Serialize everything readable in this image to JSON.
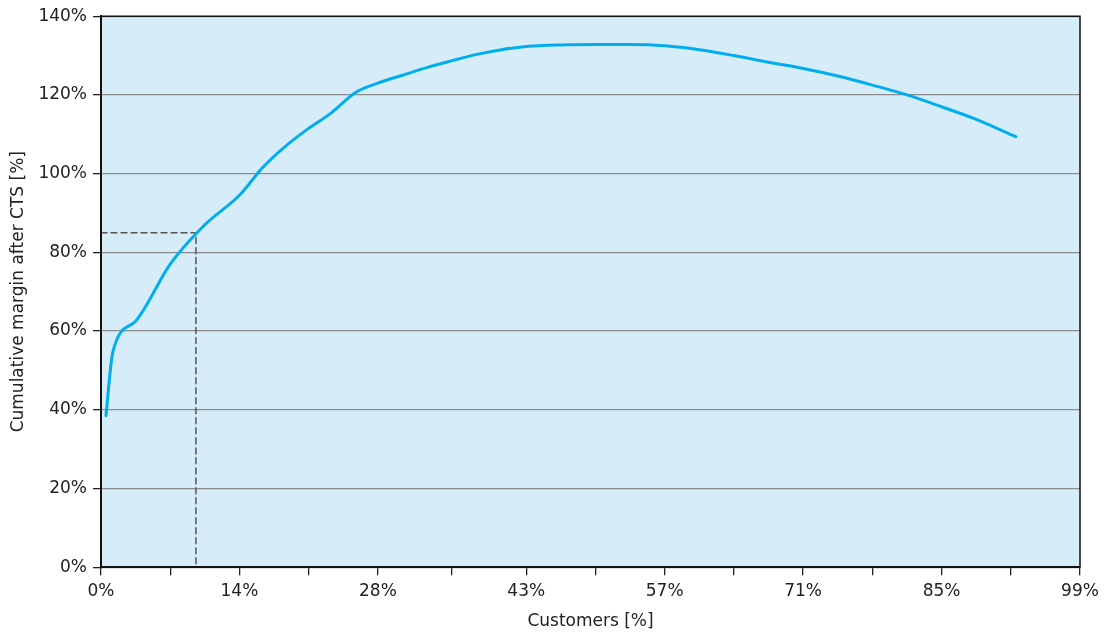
{
  "chart_data": {
    "type": "line",
    "xlabel": "Customers [%]",
    "ylabel": "Cumulative margin after CTS [%]",
    "xlim": [
      0,
      99
    ],
    "ylim": [
      0,
      140
    ],
    "xticks": [
      {
        "value": 0,
        "label": "0%"
      },
      {
        "value": 7,
        "label": null
      },
      {
        "value": 14,
        "label": "14%"
      },
      {
        "value": 21,
        "label": null
      },
      {
        "value": 28,
        "label": "28%"
      },
      {
        "value": 35.5,
        "label": null
      },
      {
        "value": 43,
        "label": "43%"
      },
      {
        "value": 50,
        "label": null
      },
      {
        "value": 57,
        "label": "57%"
      },
      {
        "value": 64,
        "label": null
      },
      {
        "value": 71,
        "label": "71%"
      },
      {
        "value": 78,
        "label": null
      },
      {
        "value": 85,
        "label": "85%"
      },
      {
        "value": 92,
        "label": null
      },
      {
        "value": 99,
        "label": "99%"
      }
    ],
    "yticks": [
      {
        "value": 0,
        "label": "0%"
      },
      {
        "value": 20,
        "label": "20%"
      },
      {
        "value": 40,
        "label": "40%"
      },
      {
        "value": 60,
        "label": "60%"
      },
      {
        "value": 80,
        "label": "80%"
      },
      {
        "value": 100,
        "label": "100%"
      },
      {
        "value": 120,
        "label": "120%"
      },
      {
        "value": 140,
        "label": "140%"
      }
    ],
    "grid": "y",
    "legend": false,
    "marker": "none",
    "series": [
      {
        "color": "#00aeef",
        "line_style": "solid",
        "x": [
          0.5,
          1.2,
          3.5,
          7,
          10.5,
          14,
          16.33,
          18.67,
          21,
          23.33,
          25.67,
          28,
          30.5,
          33,
          35.5,
          38,
          40.5,
          43,
          46.5,
          50,
          53.5,
          57,
          60.5,
          64,
          67.5,
          71,
          74.5,
          78,
          81.5,
          85,
          88.5,
          92.5
        ],
        "values": [
          38.5,
          54.7,
          62.5,
          77,
          87,
          94.5,
          101.5,
          107,
          111.5,
          115.5,
          120.5,
          123,
          125,
          127,
          128.7,
          130.3,
          131.5,
          132.3,
          132.7,
          132.8,
          132.8,
          132.5,
          131.5,
          130,
          128.3,
          126.7,
          124.8,
          122.5,
          120,
          117,
          113.8,
          109.4
        ]
      },
      {
        "color": "#555555",
        "line_style": "dashed",
        "x": [
          0,
          9.6,
          9.6
        ],
        "values": [
          85,
          85,
          0
        ]
      }
    ]
  }
}
